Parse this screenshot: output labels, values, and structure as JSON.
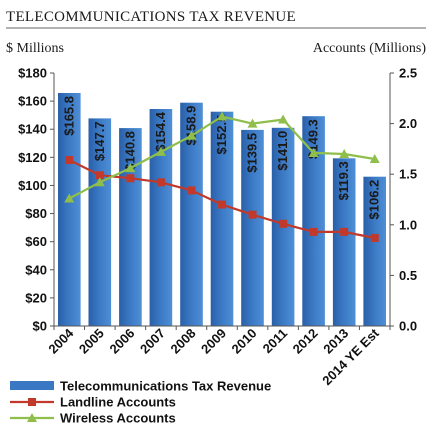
{
  "chart_data": {
    "type": "bar",
    "title": "TELECOMMUNICATIONS TAX REVENUE",
    "ylabel_left": "$ Millions",
    "ylabel_right": "Accounts (Millions)",
    "categories": [
      "2004",
      "2005",
      "2006",
      "2007",
      "2008",
      "2009",
      "2010",
      "2011",
      "2012",
      "2013",
      "2014 YE Est"
    ],
    "y_left": {
      "range": [
        0,
        180
      ],
      "ticks": [
        0,
        20,
        40,
        60,
        80,
        100,
        120,
        140,
        160,
        180
      ],
      "tick_labels": [
        "$0",
        "$20",
        "$40",
        "$60",
        "$80",
        "$100",
        "$120",
        "$140",
        "$160",
        "$180"
      ]
    },
    "y_right": {
      "range": [
        0,
        2.5
      ],
      "ticks": [
        0,
        0.5,
        1,
        1.5,
        2,
        2.5
      ],
      "tick_labels": [
        "0.0",
        "0.5",
        "1.0",
        "1.5",
        "2.0",
        "2.5"
      ]
    },
    "grid": false,
    "legend_position": "bottom-left",
    "series": [
      {
        "name": "Telecommunications Tax Revenue",
        "kind": "bar",
        "axis": "left",
        "color": "#3a78c4",
        "values": [
          165.8,
          147.7,
          140.8,
          154.4,
          158.9,
          152.5,
          139.5,
          141.0,
          149.3,
          119.3,
          106.2
        ],
        "labels": [
          "$165.8",
          "$147.7",
          "$140.8",
          "$154.4",
          "$158.9",
          "$152.5",
          "$139.5",
          "$141.0",
          "$149.3",
          "$119.3",
          "$106.2"
        ]
      },
      {
        "name": "Landline Accounts",
        "kind": "line",
        "axis": "right",
        "color": "#c0392b",
        "marker": "square",
        "values": [
          1.64,
          1.49,
          1.46,
          1.42,
          1.34,
          1.2,
          1.1,
          1.01,
          0.93,
          0.93,
          0.87
        ]
      },
      {
        "name": "Wireless Accounts",
        "kind": "line",
        "axis": "right",
        "color": "#8fbf4a",
        "marker": "triangle",
        "values": [
          1.26,
          1.42,
          1.56,
          1.72,
          1.88,
          2.07,
          2.0,
          2.04,
          1.71,
          1.7,
          1.65
        ]
      }
    ]
  }
}
